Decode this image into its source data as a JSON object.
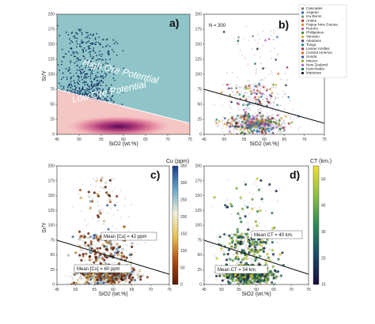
{
  "chart_data": [
    {
      "panel": "a)",
      "type": "scatter",
      "xlabel": "SiO2 (wt.%)",
      "ylabel": "Sr/Y",
      "xlim": [
        45,
        75
      ],
      "ylim": [
        0,
        200
      ],
      "xticks": [
        45,
        50,
        55,
        60,
        65,
        70,
        75
      ],
      "yticks": [
        0,
        25,
        50,
        75,
        100,
        125,
        150,
        175,
        200
      ],
      "annotations": [
        {
          "text": "High Ore Potential"
        },
        {
          "text": "Low Ore Potential"
        }
      ],
      "boundary_line": {
        "x": [
          45,
          75
        ],
        "y": [
          75,
          18
        ]
      },
      "colors": {
        "high_zone": "#8fc5c8",
        "low_zone": "#f4c6c4",
        "points": "#1b3a6b",
        "density_core": "#6a1a66"
      }
    },
    {
      "panel": "b)",
      "type": "scatter",
      "xlabel": "SiO2 (wt.%)",
      "xlim": [
        45,
        75
      ],
      "ylim": [
        0,
        200
      ],
      "xticks": [
        45,
        50,
        55,
        60,
        65,
        70,
        75
      ],
      "yticks": [
        0,
        25,
        50,
        75,
        100,
        125,
        150,
        175,
        200
      ],
      "annotations": [
        {
          "text": "N = 300"
        }
      ],
      "boundary_line": {
        "x": [
          45,
          75
        ],
        "y": [
          75,
          18
        ]
      },
      "legend_placement": "top-right",
      "legend": [
        {
          "label": "Cascades",
          "color": "#7a7a7a"
        },
        {
          "label": "Aegean",
          "color": "#2b6fb5"
        },
        {
          "label": "Izu-Bonin",
          "color": "#8a8a8a"
        },
        {
          "label": "Andes",
          "color": "#b03a2e"
        },
        {
          "label": "Papua New Guinea",
          "color": "#e08a2e"
        },
        {
          "label": "Ruruhu",
          "color": "#c85a9a"
        },
        {
          "label": "Philippines",
          "color": "#4a8c3a"
        },
        {
          "label": "Vanuatu",
          "color": "#d4b02e"
        },
        {
          "label": "Aleutians",
          "color": "#5a3a8a"
        },
        {
          "label": "Tonga",
          "color": "#2e8a8a"
        },
        {
          "label": "Lesser Antilles",
          "color": "#a03050"
        },
        {
          "label": "Central America",
          "color": "#e06a20"
        },
        {
          "label": "Sunda",
          "color": "#3a5ab0"
        },
        {
          "label": "Mexico",
          "color": "#8ab030"
        },
        {
          "label": "New Zealand",
          "color": "#b06ad0"
        },
        {
          "label": "Kamchatka",
          "color": "#20705a"
        },
        {
          "label": "Marianas",
          "color": "#2a2a2a"
        }
      ]
    },
    {
      "panel": "c)",
      "type": "scatter",
      "xlabel": "SiO2 (wt.%)",
      "ylabel": "Sr/Y",
      "xlim": [
        45,
        75
      ],
      "ylim": [
        0,
        200
      ],
      "xticks": [
        45,
        50,
        55,
        60,
        65,
        70,
        75
      ],
      "yticks": [
        0,
        25,
        50,
        75,
        100,
        125,
        150,
        175,
        200
      ],
      "boundary_line": {
        "x": [
          45,
          75
        ],
        "y": [
          75,
          18
        ]
      },
      "colorbar": {
        "label": "Cu (ppm)",
        "min": 0,
        "max": 350,
        "ticks": [
          0,
          50,
          100,
          150,
          200,
          250,
          300,
          350
        ],
        "colors": [
          "#5a1a08",
          "#b04a10",
          "#e8c050",
          "#f2f0d8",
          "#6aa8c8",
          "#1a3a8a"
        ]
      },
      "annotations": [
        {
          "text": "Mean [Cu] = 42 ppm",
          "y": 42
        },
        {
          "text": "Mean [Cu] = 60 ppm",
          "y": 20
        }
      ]
    },
    {
      "panel": "d)",
      "type": "scatter",
      "xlabel": "SiO2 (wt.%)",
      "xlim": [
        45,
        75
      ],
      "ylim": [
        0,
        200
      ],
      "xticks": [
        45,
        50,
        55,
        60,
        65,
        70,
        75
      ],
      "yticks": [
        0,
        25,
        50,
        75,
        100,
        125,
        150,
        175,
        200
      ],
      "boundary_line": {
        "x": [
          45,
          75
        ],
        "y": [
          75,
          18
        ]
      },
      "colorbar": {
        "label": "CT (km.)",
        "min": 10,
        "max": 55,
        "ticks": [
          10,
          20,
          30,
          40,
          50
        ],
        "colors": [
          "#1a0a3a",
          "#1a4a6a",
          "#2a8a5a",
          "#8ac040",
          "#f2e030"
        ]
      },
      "annotations": [
        {
          "text": "Mean CT = 40 km.",
          "y": 62
        },
        {
          "text": "Mean CT = 34 km.",
          "y": 20
        }
      ]
    }
  ]
}
